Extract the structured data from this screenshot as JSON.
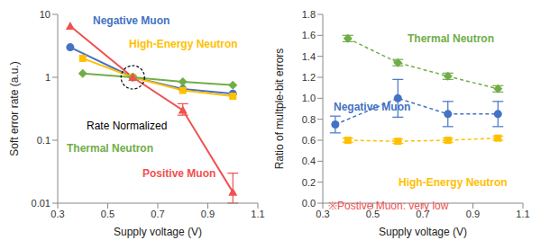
{
  "chart_data": [
    {
      "type": "line",
      "log": "y",
      "x_label": "Supply voltage (V)",
      "y_label": "Soft error rate (a.u.)",
      "xlim": [
        0.3,
        1.1
      ],
      "xticks": [
        0.3,
        0.5,
        0.7,
        0.9,
        1.1
      ],
      "ylim": [
        0.01,
        10
      ],
      "yticks": [
        0.01,
        0.1,
        1,
        10
      ],
      "grid": false,
      "series": [
        {
          "name": "Negative Muon",
          "color": "#4472c4",
          "marker": "circle",
          "line_style": "solid",
          "x": [
            0.35,
            0.6,
            0.8,
            1.0
          ],
          "values": [
            3.0,
            1.0,
            0.65,
            0.55
          ]
        },
        {
          "name": "High-Energy Neutron",
          "color": "#ffc000",
          "marker": "square",
          "line_style": "solid",
          "x": [
            0.4,
            0.6,
            0.8,
            1.0
          ],
          "values": [
            2.0,
            1.0,
            0.62,
            0.5
          ]
        },
        {
          "name": "Thermal Neutron",
          "color": "#70ad47",
          "marker": "diamond",
          "line_style": "solid",
          "x": [
            0.4,
            0.6,
            0.8,
            1.0
          ],
          "values": [
            1.15,
            1.0,
            0.85,
            0.75
          ]
        },
        {
          "name": "Positive Muon",
          "color": "#f0504f",
          "marker": "triangle",
          "line_style": "solid",
          "x": [
            0.35,
            0.6,
            0.8,
            1.0
          ],
          "values": [
            6.5,
            1.0,
            0.3,
            0.015
          ],
          "errors": [
            null,
            null,
            [
              0.05,
              0.08
            ],
            [
              0.005,
              0.015
            ]
          ]
        }
      ],
      "annotations": [
        {
          "text": "Rate Normalized",
          "x": 0.6,
          "y": 1,
          "color": "#000000"
        }
      ]
    },
    {
      "type": "line",
      "x_label": "Supply voltage (V)",
      "y_label": "Ratio of multple-bit errors",
      "xlim": [
        0.3,
        1.1
      ],
      "xticks": [
        0.3,
        0.5,
        0.7,
        0.9,
        1.1
      ],
      "ylim": [
        0,
        1.8
      ],
      "yticks": [
        {
          "value": 0,
          "label": "0.0"
        },
        0.2,
        0.4,
        0.6,
        0.8,
        {
          "value": 1,
          "label": "1.0"
        },
        1.2,
        1.4,
        1.6,
        1.8
      ],
      "grid": false,
      "series": [
        {
          "name": "Thermal Neutron",
          "color": "#70ad47",
          "marker": "diamond",
          "line_style": "dashed",
          "x": [
            0.4,
            0.6,
            0.8,
            1.0
          ],
          "values": [
            1.57,
            1.34,
            1.21,
            1.09
          ],
          "errors": [
            0.03,
            0.03,
            0.03,
            0.03
          ]
        },
        {
          "name": "Negative Muon",
          "color": "#4472c4",
          "marker": "circle",
          "line_style": "dashed",
          "x": [
            0.35,
            0.6,
            0.8,
            1.0
          ],
          "values": [
            0.75,
            1.0,
            0.85,
            0.85
          ],
          "errors": [
            0.08,
            0.18,
            0.12,
            0.12
          ]
        },
        {
          "name": "High-Energy Neutron",
          "color": "#ffc000",
          "marker": "square",
          "line_style": "dashed",
          "x": [
            0.4,
            0.6,
            0.8,
            1.0
          ],
          "values": [
            0.6,
            0.59,
            0.6,
            0.62
          ],
          "errors": [
            0.02,
            0.02,
            0.02,
            0.02
          ]
        }
      ],
      "annotations": [
        {
          "text": "※Postive Muon: very low",
          "color": "#f0504f"
        }
      ]
    }
  ]
}
